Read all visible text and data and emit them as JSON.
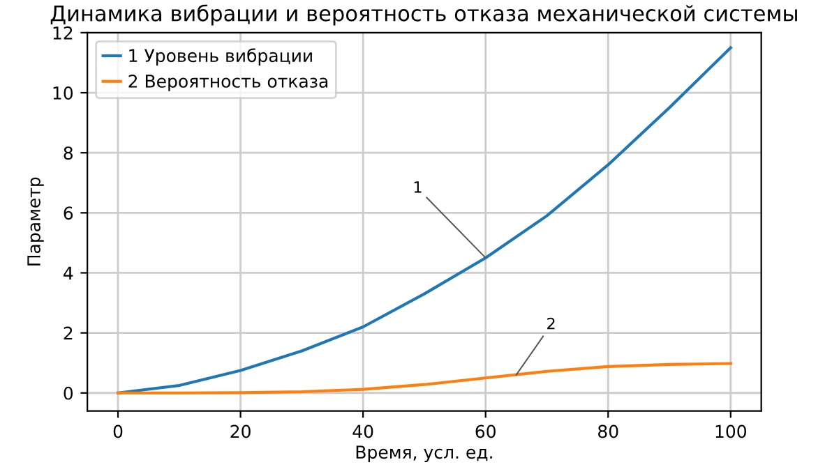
{
  "chart_data": {
    "type": "line",
    "title": "Динамика вибрации и вероятность отказа механической системы",
    "xlabel": "Время, усл. ед.",
    "ylabel": "Параметр",
    "x": [
      0,
      10,
      20,
      30,
      40,
      50,
      60,
      70,
      80,
      90,
      100
    ],
    "series": [
      {
        "name": "1 Уровень вибрации",
        "color": "#1f77b4",
        "values": [
          0,
          0.25,
          0.75,
          1.4,
          2.2,
          3.3,
          4.5,
          5.9,
          7.6,
          9.5,
          11.5
        ]
      },
      {
        "name": "2 Вероятность отказа",
        "color": "#ff7f0e",
        "values": [
          0,
          0,
          0.01,
          0.04,
          0.12,
          0.28,
          0.5,
          0.72,
          0.88,
          0.95,
          0.98
        ]
      }
    ],
    "annotations": [
      {
        "text": "1",
        "x": 60,
        "y": 4.5
      },
      {
        "text": "2",
        "x": 65,
        "y": 0.6
      }
    ],
    "xlim": [
      -5,
      105
    ],
    "ylim": [
      -0.6,
      12
    ],
    "xticks": [
      0,
      20,
      40,
      60,
      80,
      100
    ],
    "yticks": [
      0,
      2,
      4,
      6,
      8,
      10,
      12
    ],
    "grid": true,
    "legend": "top left",
    "marker": "none",
    "line_style": "solid"
  }
}
